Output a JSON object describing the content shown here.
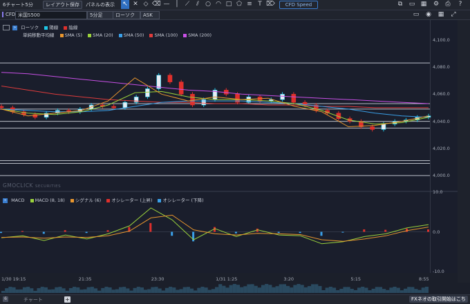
{
  "toolbar": {
    "title": "6チャート5分",
    "layout_save": "レイアウト保存",
    "panel_display": "パネルの表示",
    "cfd_speed": "CFD Speed"
  },
  "subbar": {
    "tag": "CFD",
    "symbol": "米国S500",
    "timeframe": "5分足",
    "chart_type": "ローソク",
    "price_type": "ASK"
  },
  "legend": {
    "chart_type": "ローソク",
    "up_label": "陽線",
    "down_label": "陰線",
    "ma_label": "単純移動平均線",
    "sma5": "SMA (5)",
    "sma20": "SMA (20)",
    "sma50": "SMA (50)",
    "sma100": "SMA (100)",
    "sma200": "SMA (200)"
  },
  "macd_legend": {
    "macd": "MACD",
    "macd_params": "MACD (8, 18)",
    "signal": "シグナル (6)",
    "osc_up": "オシレーター (上昇)",
    "osc_down": "オシレーター (下降)"
  },
  "watermark": {
    "brand": "GMOCLICK",
    "sub": "SECURITIES"
  },
  "bottombar": {
    "tab": "チャート",
    "fx_link": "FXネオの取引開始はこち"
  },
  "colors": {
    "up": "#1ec8e8",
    "down": "#e0302c",
    "sma5": "#e8962e",
    "sma20": "#9bd23c",
    "sma50": "#3aa0e8",
    "sma100": "#e03c3c",
    "sma200": "#c850e6"
  },
  "chart_data": [
    {
      "type": "line",
      "title": "",
      "y_ticks": [
        "4,100.0",
        "4,080.0",
        "4,060.0",
        "4,040.0",
        "4,020.0",
        "4,000.0"
      ],
      "y_values": [
        4100,
        4080,
        4060,
        4040,
        4020,
        4000
      ],
      "ylim": [
        3995,
        4109
      ],
      "x_ticks": [
        "1/30 19:15",
        "21:35",
        "23:30",
        "1/31 1:25",
        "3:20",
        "5:15",
        "8:55"
      ],
      "x_tick_pos": [
        0,
        0.197,
        0.367,
        0.518,
        0.677,
        0.834,
        1.0
      ],
      "horizontal_lines": [
        4083,
        4053,
        4049,
        4040,
        4035,
        4011,
        4009,
        4000
      ],
      "series": [
        {
          "name": "SMA (200)",
          "color": "#c850e6",
          "values": [
            4076,
            4075,
            4073,
            4071,
            4069,
            4067,
            4065,
            4063,
            4062,
            4060,
            4059,
            4058,
            4057,
            4056,
            4055,
            4054,
            4053
          ]
        },
        {
          "name": "SMA (100)",
          "color": "#e03c3c",
          "values": [
            4066,
            4063,
            4060,
            4058,
            4056,
            4055,
            4054,
            4054,
            4053,
            4053,
            4052,
            4052,
            4051,
            4051,
            4050,
            4050,
            4050
          ]
        },
        {
          "name": "SMA (50)",
          "color": "#3aa0e8",
          "values": [
            4049,
            4048,
            4047,
            4047,
            4048,
            4051,
            4054,
            4055,
            4055,
            4055,
            4054,
            4053,
            4051,
            4049,
            4046,
            4044,
            4043
          ]
        },
        {
          "name": "SMA (20)",
          "color": "#9bd23c",
          "values": [
            4049,
            4046,
            4045,
            4047,
            4052,
            4061,
            4062,
            4058,
            4056,
            4056,
            4055,
            4053,
            4048,
            4041,
            4038,
            4039,
            4043
          ]
        },
        {
          "name": "SMA (5)",
          "color": "#e8962e",
          "values": [
            4049,
            4044,
            4046,
            4048,
            4055,
            4072,
            4060,
            4055,
            4058,
            4056,
            4057,
            4051,
            4047,
            4036,
            4037,
            4040,
            4044
          ]
        }
      ],
      "candles_close": [
        4050,
        4047,
        4045,
        4043,
        4046,
        4048,
        4047,
        4049,
        4052,
        4051,
        4050,
        4054,
        4058,
        4064,
        4074,
        4069,
        4060,
        4052,
        4056,
        4063,
        4060,
        4054,
        4058,
        4055,
        4056,
        4060,
        4054,
        4052,
        4048,
        4046,
        4042,
        4040,
        4036,
        4034,
        4038,
        4040,
        4041,
        4043,
        4044
      ]
    },
    {
      "type": "line",
      "title": "MACD",
      "y_ticks": [
        "10.0",
        "0.0",
        "-10.0"
      ],
      "y_values": [
        10,
        0,
        -10
      ],
      "ylim": [
        -10,
        10
      ],
      "series": [
        {
          "name": "MACD (8, 18)",
          "color": "#9bd23c",
          "values": [
            -1.5,
            -1.0,
            -2.2,
            -0.8,
            -1.8,
            -0.5,
            1.5,
            6.0,
            3.0,
            -2.0,
            0.8,
            -1.2,
            0.5,
            -0.8,
            -1.0,
            -3.0,
            -2.5,
            -1.2,
            -0.5,
            1.0,
            1.8
          ]
        },
        {
          "name": "シグナル (6)",
          "color": "#e8962e",
          "values": [
            -1.4,
            -1.3,
            -1.6,
            -1.3,
            -1.4,
            -1.0,
            0.2,
            3.5,
            4.2,
            0.5,
            -0.5,
            -0.8,
            -0.4,
            -0.5,
            -0.7,
            -2.0,
            -2.4,
            -1.8,
            -1.0,
            0.3,
            1.2
          ]
        }
      ],
      "histogram": [
        -0.3,
        0.2,
        -0.5,
        0.4,
        -0.3,
        0.4,
        1.2,
        2.2,
        -1.0,
        -2.4,
        1.2,
        -0.4,
        0.8,
        -0.3,
        -0.3,
        -1.0,
        -0.2,
        0.6,
        0.5,
        0.8,
        0.6
      ]
    }
  ]
}
